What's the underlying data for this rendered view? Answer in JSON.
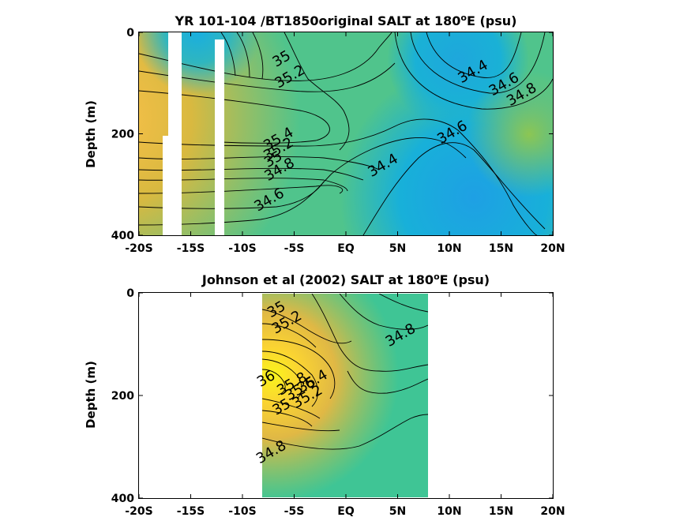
{
  "chart_data": [
    {
      "type": "heatmap",
      "title_main": "YR 101-104 /BT1850original SALT at 180",
      "title_sup": "o",
      "title_end": "E (psu)",
      "xlabel": "",
      "ylabel": "Depth (m)",
      "xlim": [
        -20,
        20
      ],
      "ylim": [
        0,
        400
      ],
      "y_reversed": true,
      "x_ticks": [
        -20,
        -15,
        -10,
        -5,
        0,
        5,
        10,
        15,
        20
      ],
      "x_tick_labels": [
        "-20S",
        "-15S",
        "-10S",
        "-5S",
        "EQ",
        "5N",
        "10N",
        "15N",
        "20N"
      ],
      "y_ticks": [
        0,
        200,
        400
      ],
      "y_tick_labels": [
        "0",
        "200",
        "400"
      ],
      "contour_labels": [
        {
          "text": "35",
          "x": -6.0,
          "y": 60
        },
        {
          "text": "35.2",
          "x": -5.2,
          "y": 95
        },
        {
          "text": "34.4",
          "x": 12.5,
          "y": 85
        },
        {
          "text": "34.6",
          "x": 15.5,
          "y": 110
        },
        {
          "text": "34.8",
          "x": 17.2,
          "y": 130
        },
        {
          "text": "34.6",
          "x": 10.5,
          "y": 205
        },
        {
          "text": "35.4",
          "x": -6.3,
          "y": 218
        },
        {
          "text": "35.2",
          "x": -6.3,
          "y": 238
        },
        {
          "text": "35",
          "x": -6.8,
          "y": 258
        },
        {
          "text": "34.8",
          "x": -6.2,
          "y": 278
        },
        {
          "text": "34.4",
          "x": 3.8,
          "y": 270
        },
        {
          "text": "34.6",
          "x": -7.2,
          "y": 338
        }
      ],
      "no_data_columns": [
        [
          -17.4,
          -15.8
        ],
        [
          -12.2,
          -11.2
        ]
      ],
      "colormap": [
        "#3f32a8",
        "#2c8be8",
        "#18b3d6",
        "#39c596",
        "#9fc652",
        "#e5b940",
        "#fdc93a",
        "#f9fb14"
      ]
    },
    {
      "type": "heatmap",
      "title_main": "Johnson et al (2002) SALT at 180",
      "title_sup": "o",
      "title_end": "E (psu)",
      "xlabel": "",
      "ylabel": "Depth (m)",
      "xlim": [
        -20,
        20
      ],
      "ylim": [
        0,
        400
      ],
      "y_reversed": true,
      "x_ticks": [
        -20,
        -15,
        -10,
        -5,
        0,
        5,
        10,
        15,
        20
      ],
      "x_tick_labels": [
        "-20S",
        "-15S",
        "-10S",
        "-5S",
        "EQ",
        "5N",
        "10N",
        "15N",
        "20N"
      ],
      "y_ticks": [
        0,
        200,
        400
      ],
      "y_tick_labels": [
        "0",
        "200",
        "400"
      ],
      "data_x_range": [
        -8,
        8
      ],
      "contour_labels": [
        {
          "text": "35",
          "x": -6.5,
          "y": 40
        },
        {
          "text": "35.2",
          "x": -5.5,
          "y": 65
        },
        {
          "text": "34.8",
          "x": 5.5,
          "y": 90
        },
        {
          "text": "36",
          "x": -7.5,
          "y": 175
        },
        {
          "text": "35.8",
          "x": -5.0,
          "y": 185
        },
        {
          "text": "35.6",
          "x": -4.2,
          "y": 195
        },
        {
          "text": "35.4",
          "x": -3.0,
          "y": 180
        },
        {
          "text": "35.2",
          "x": -3.5,
          "y": 210
        },
        {
          "text": "35",
          "x": -6.0,
          "y": 230
        },
        {
          "text": "34.8",
          "x": -7.0,
          "y": 318
        }
      ],
      "colormap": [
        "#3f32a8",
        "#2c8be8",
        "#18b3d6",
        "#39c596",
        "#9fc652",
        "#e5b940",
        "#fdc93a",
        "#f9fb14"
      ]
    }
  ]
}
